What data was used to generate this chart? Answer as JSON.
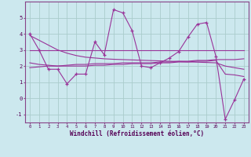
{
  "xlabel": "Windchill (Refroidissement éolien,°C)",
  "bg_color": "#cce8ee",
  "grid_color": "#aacccc",
  "line_color": "#993399",
  "x": [
    0,
    1,
    2,
    3,
    4,
    5,
    6,
    7,
    8,
    9,
    10,
    11,
    12,
    13,
    14,
    15,
    16,
    17,
    18,
    19,
    20,
    21,
    22,
    23
  ],
  "y_main": [
    4.0,
    3.0,
    1.8,
    1.8,
    0.9,
    1.5,
    1.5,
    3.5,
    2.7,
    5.5,
    5.3,
    4.2,
    2.0,
    1.9,
    2.2,
    2.5,
    2.9,
    3.8,
    4.6,
    4.7,
    2.6,
    -1.3,
    -0.1,
    1.2
  ],
  "y_trend1": [
    3.0,
    3.0,
    3.0,
    3.0,
    3.0,
    3.0,
    3.0,
    3.0,
    3.0,
    3.0,
    3.0,
    3.0,
    3.0,
    3.0,
    3.0,
    3.0,
    3.0,
    3.0,
    3.0,
    3.0,
    3.0,
    3.0,
    3.0,
    3.0
  ],
  "y_trend2": [
    1.9,
    1.95,
    2.0,
    2.0,
    2.05,
    2.1,
    2.1,
    2.15,
    2.15,
    2.15,
    2.2,
    2.2,
    2.2,
    2.2,
    2.25,
    2.25,
    2.3,
    2.3,
    2.35,
    2.35,
    2.4,
    2.4,
    2.4,
    2.45
  ],
  "y_trend3": [
    3.9,
    3.6,
    3.3,
    3.0,
    2.8,
    2.65,
    2.55,
    2.5,
    2.45,
    2.42,
    2.4,
    2.38,
    2.36,
    2.34,
    2.32,
    2.3,
    2.28,
    2.26,
    2.24,
    2.22,
    2.2,
    2.0,
    1.9,
    1.8
  ],
  "y_trend4": [
    2.2,
    2.1,
    2.05,
    2.0,
    2.0,
    2.0,
    2.0,
    2.05,
    2.05,
    2.1,
    2.1,
    2.15,
    2.15,
    2.15,
    2.2,
    2.2,
    2.25,
    2.25,
    2.3,
    2.3,
    2.35,
    1.5,
    1.45,
    1.35
  ],
  "ylim": [
    -1.5,
    6.0
  ],
  "yticks": [
    -1,
    0,
    1,
    2,
    3,
    4,
    5
  ],
  "xticks": [
    0,
    1,
    2,
    3,
    4,
    5,
    6,
    7,
    8,
    9,
    10,
    11,
    12,
    13,
    14,
    15,
    16,
    17,
    18,
    19,
    20,
    21,
    22,
    23
  ]
}
